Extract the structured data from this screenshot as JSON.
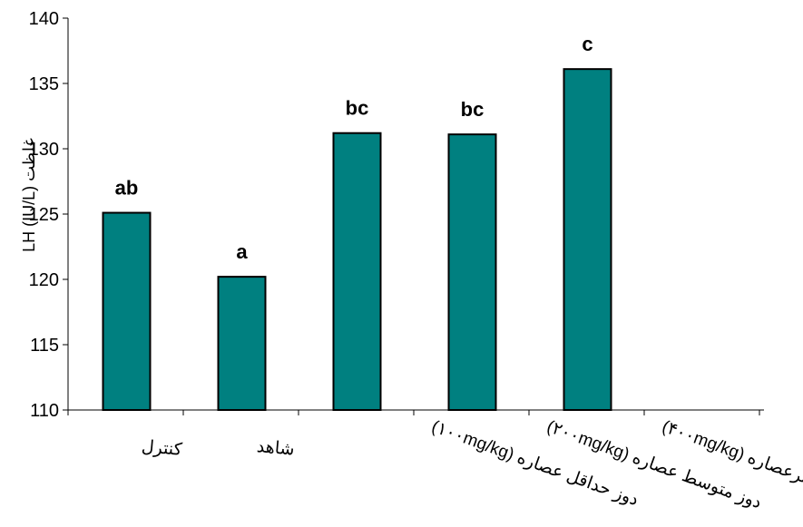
{
  "chart_data": {
    "type": "bar",
    "ylabel": "غلظت LH (IU/L)",
    "ylim": [
      110,
      140
    ],
    "yticks": [
      110,
      115,
      120,
      125,
      130,
      135,
      140
    ],
    "categories": [
      "کنترل",
      "شاهد",
      "دوز حداقل عصاره (۱۰۰mg/kg)",
      "دوز متوسط عصاره (۲۰۰mg/kg)",
      "دوز حداکثرعصاره (۴۰۰mg/kg)"
    ],
    "series": [
      {
        "values": [
          125.1,
          120.2,
          131.2,
          131.1,
          136.1
        ],
        "labels": [
          "ab",
          "a",
          "bc",
          "bc",
          "c"
        ]
      }
    ],
    "bar_color": "#008080",
    "grid": false,
    "legend": "none"
  }
}
